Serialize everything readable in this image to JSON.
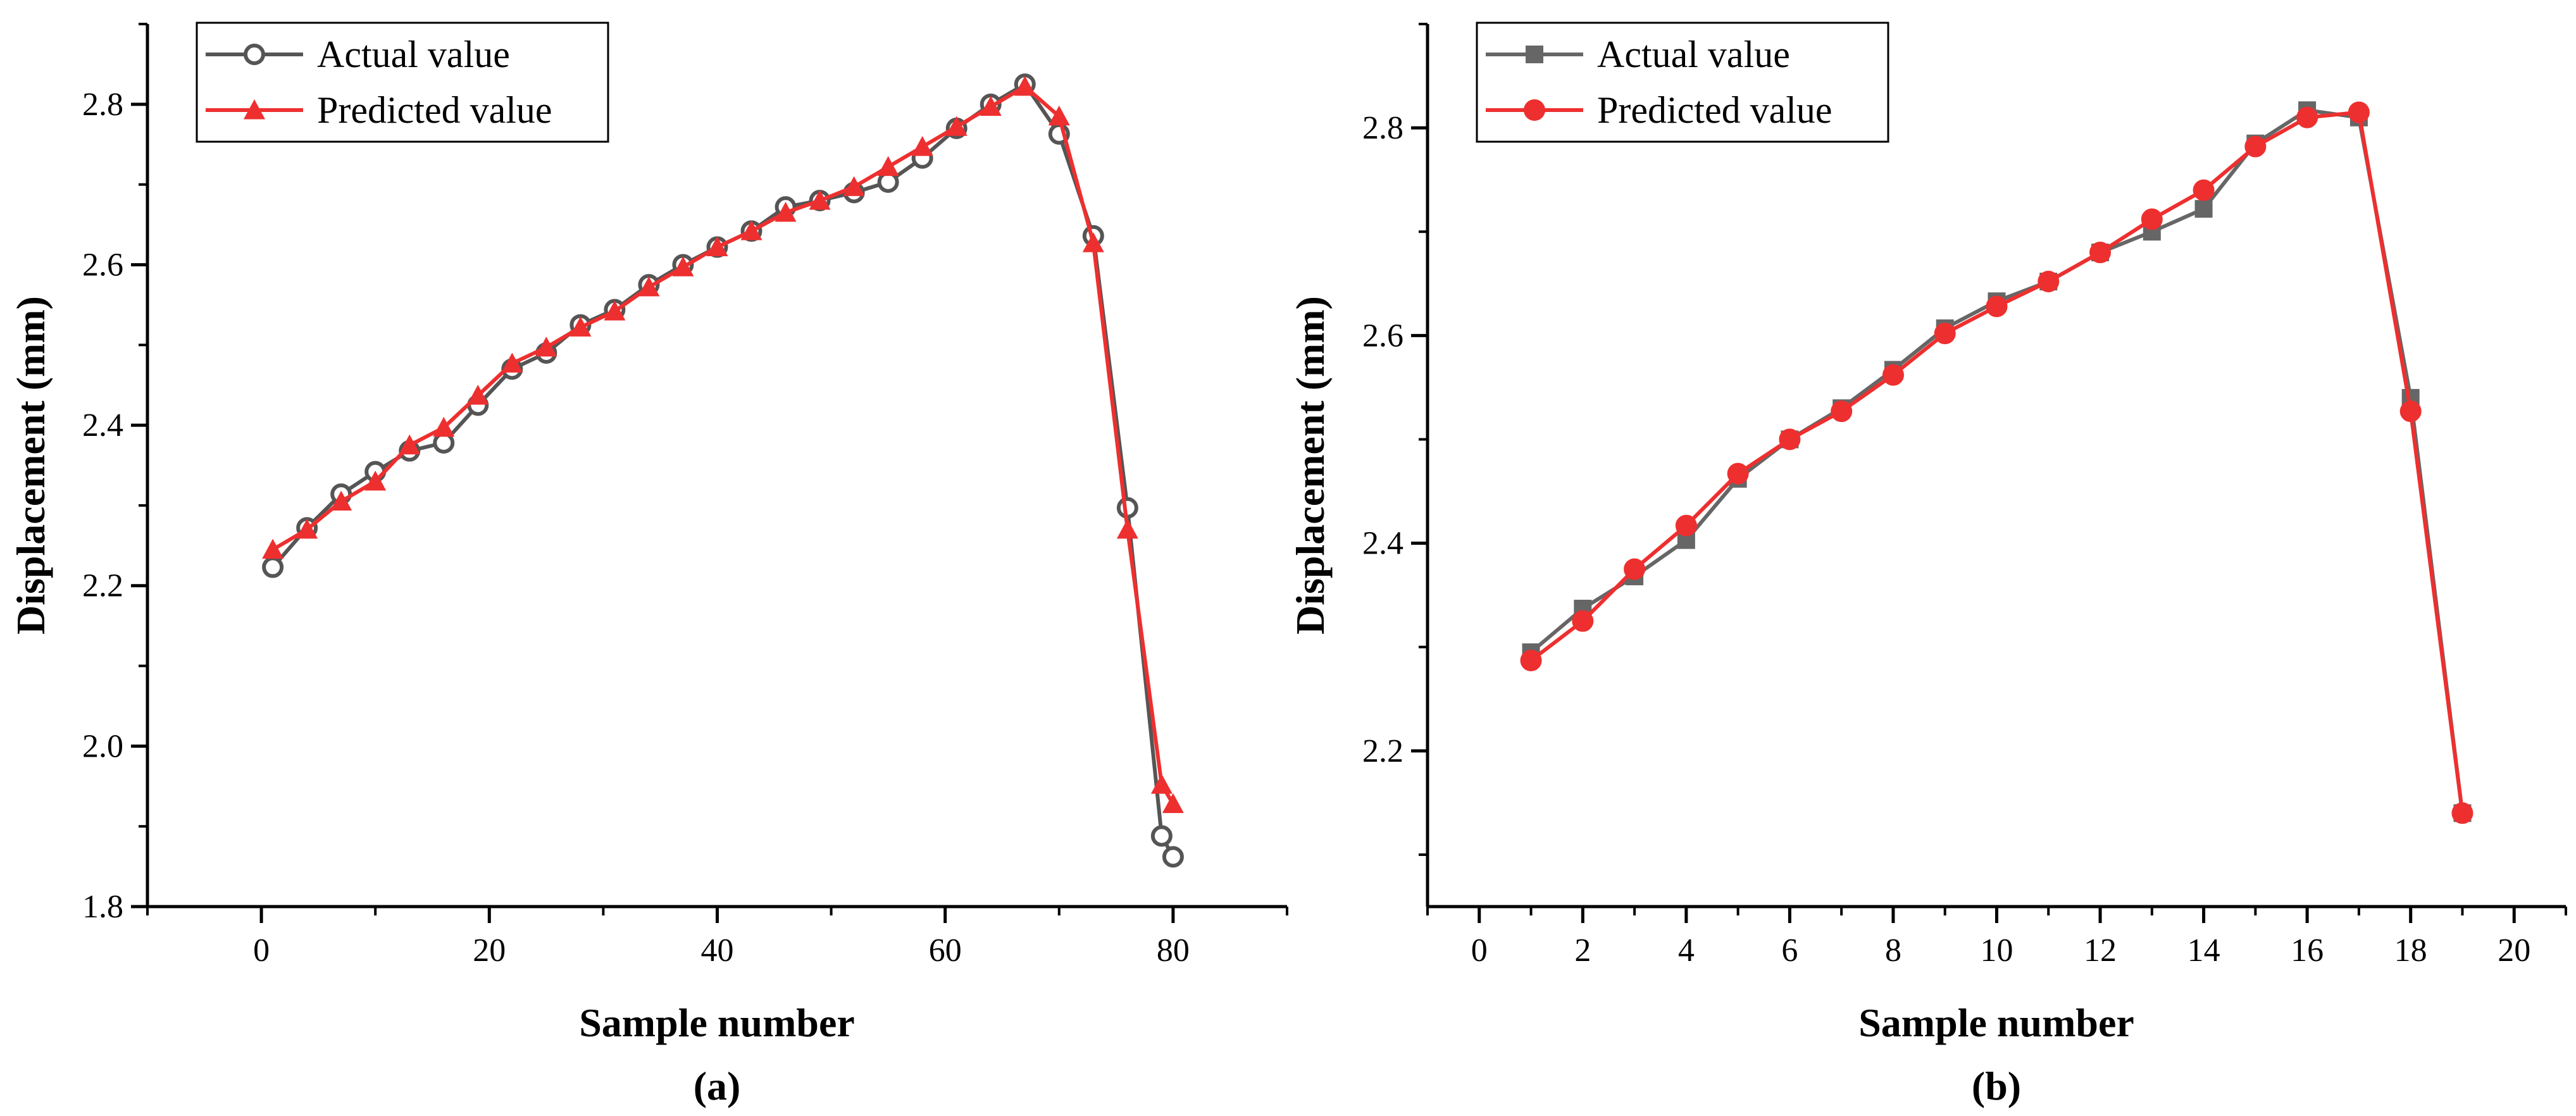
{
  "chart_data": [
    {
      "type": "line",
      "panel_label": "(a)",
      "xlabel": "Sample number",
      "ylabel": "Displacement (mm)",
      "xlim": [
        -10,
        90
      ],
      "ylim": [
        1.8,
        2.9
      ],
      "xticks": [
        0,
        20,
        40,
        60,
        80
      ],
      "yticks": [
        1.8,
        2.0,
        2.2,
        2.4,
        2.6,
        2.8
      ],
      "xtick_labels": [
        "0",
        "20",
        "40",
        "60",
        "80"
      ],
      "ytick_labels": [
        "1.8",
        "2.0",
        "2.2",
        "2.4",
        "2.6",
        "2.8"
      ],
      "legend_position": "top-left",
      "series": [
        {
          "name": "Actual value",
          "color": "#555555",
          "marker": "open-circle",
          "x": [
            1,
            4,
            7,
            10,
            13,
            16,
            19,
            22,
            25,
            28,
            31,
            34,
            37,
            40,
            43,
            46,
            49,
            52,
            55,
            58,
            61,
            64,
            67,
            70,
            73,
            76,
            79,
            80
          ],
          "y": [
            2.223,
            2.272,
            2.314,
            2.342,
            2.368,
            2.378,
            2.425,
            2.47,
            2.49,
            2.525,
            2.544,
            2.575,
            2.6,
            2.622,
            2.642,
            2.672,
            2.68,
            2.69,
            2.703,
            2.733,
            2.77,
            2.8,
            2.825,
            2.763,
            2.636,
            2.297,
            1.888,
            1.862
          ]
        },
        {
          "name": "Predicted value",
          "color": "#ee2f2f",
          "marker": "filled-triangle",
          "x": [
            1,
            4,
            7,
            10,
            13,
            16,
            19,
            22,
            25,
            28,
            31,
            34,
            37,
            40,
            43,
            46,
            49,
            52,
            55,
            58,
            61,
            64,
            67,
            70,
            73,
            76,
            79,
            80
          ],
          "y": [
            2.245,
            2.27,
            2.305,
            2.33,
            2.375,
            2.397,
            2.437,
            2.477,
            2.497,
            2.522,
            2.542,
            2.572,
            2.597,
            2.622,
            2.642,
            2.665,
            2.68,
            2.697,
            2.722,
            2.747,
            2.772,
            2.797,
            2.822,
            2.785,
            2.627,
            2.27,
            1.952,
            1.928
          ]
        }
      ]
    },
    {
      "type": "line",
      "panel_label": "(b)",
      "xlabel": "Sample number",
      "ylabel": "Displacement (mm)",
      "xlim": [
        -1,
        21
      ],
      "ylim": [
        2.05,
        2.9
      ],
      "xticks": [
        0,
        2,
        4,
        6,
        8,
        10,
        12,
        14,
        16,
        18,
        20
      ],
      "yticks": [
        2.2,
        2.4,
        2.6,
        2.8
      ],
      "xtick_labels": [
        "0",
        "2",
        "4",
        "6",
        "8",
        "10",
        "12",
        "14",
        "16",
        "18",
        "20"
      ],
      "ytick_labels": [
        "2.2",
        "2.4",
        "2.6",
        "2.8"
      ],
      "legend_position": "top-left",
      "series": [
        {
          "name": "Actual value",
          "color": "#666666",
          "marker": "filled-square",
          "x": [
            1,
            2,
            3,
            4,
            5,
            6,
            7,
            8,
            9,
            10,
            11,
            12,
            13,
            14,
            15,
            16,
            17,
            18,
            19
          ],
          "y": [
            2.295,
            2.337,
            2.368,
            2.403,
            2.462,
            2.5,
            2.53,
            2.567,
            2.607,
            2.633,
            2.652,
            2.68,
            2.7,
            2.722,
            2.785,
            2.817,
            2.81,
            2.54,
            2.14
          ]
        },
        {
          "name": "Predicted value",
          "color": "#ee2f2f",
          "marker": "filled-circle",
          "x": [
            1,
            2,
            3,
            4,
            5,
            6,
            7,
            8,
            9,
            10,
            11,
            12,
            13,
            14,
            15,
            16,
            17,
            18,
            19
          ],
          "y": [
            2.287,
            2.325,
            2.375,
            2.417,
            2.467,
            2.5,
            2.527,
            2.562,
            2.602,
            2.628,
            2.652,
            2.68,
            2.712,
            2.74,
            2.782,
            2.81,
            2.815,
            2.527,
            2.14
          ]
        }
      ]
    }
  ]
}
